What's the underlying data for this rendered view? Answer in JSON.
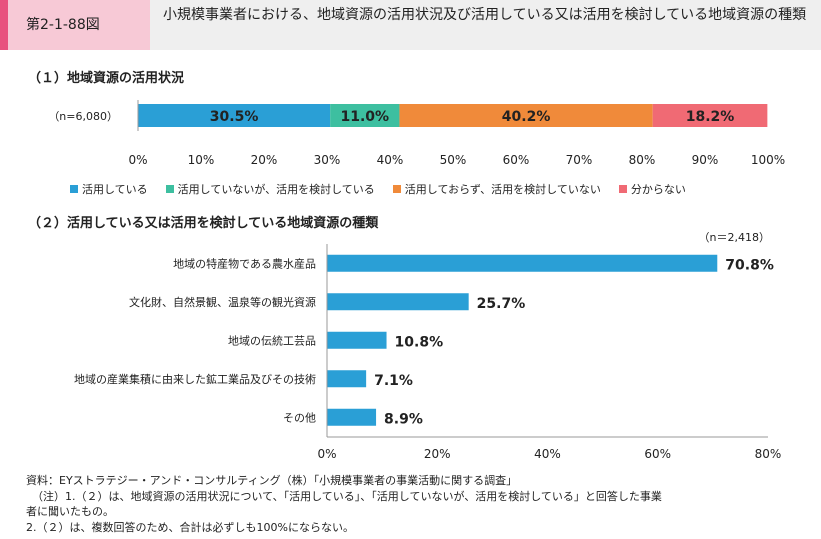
{
  "header": {
    "fig_label": "第2-1-88図",
    "title": "小規模事業者における、地域資源の活用状況及び活用している又は活用を検討している地域資源の種類"
  },
  "colors": {
    "blue": "#2a9fd6",
    "teal": "#3dbfa0",
    "orange": "#f08a3a",
    "red": "#f06a74"
  },
  "chart_data": [
    {
      "type": "bar",
      "orientation": "horizontal-stacked",
      "title": "（１）地域資源の活用状況",
      "n_label": "（n=6,080）",
      "categories": [
        "（n=6,080）"
      ],
      "series": [
        {
          "name": "活用している",
          "values": [
            30.5
          ],
          "label": "30.5%",
          "color": "#2a9fd6"
        },
        {
          "name": "活用していないが、活用を検討している",
          "values": [
            11.0
          ],
          "label": "11.0%",
          "color": "#3dbfa0"
        },
        {
          "name": "活用しておらず、活用を検討していない",
          "values": [
            40.2
          ],
          "label": "40.2%",
          "color": "#f08a3a"
        },
        {
          "name": "分からない",
          "values": [
            18.2
          ],
          "label": "18.2%",
          "color": "#f06a74"
        }
      ],
      "xlim": [
        0,
        100
      ],
      "xticks": [
        "0%",
        "10%",
        "20%",
        "30%",
        "40%",
        "50%",
        "60%",
        "70%",
        "80%",
        "90%",
        "100%"
      ],
      "legend": "bottom"
    },
    {
      "type": "bar",
      "orientation": "horizontal",
      "title": "（２）活用している又は活用を検討している地域資源の種類",
      "n_label": "（n＝2,418）",
      "categories": [
        "地域の特産物である農水産品",
        "文化財、自然景観、温泉等の観光資源",
        "地域の伝統工芸品",
        "地域の産業集積に由来した鉱工業品及びその技術",
        "その他"
      ],
      "values": [
        70.8,
        25.7,
        10.8,
        7.1,
        8.9
      ],
      "labels": [
        "70.8%",
        "25.7%",
        "10.8%",
        "7.1%",
        "8.9%"
      ],
      "xlim": [
        0,
        80
      ],
      "xticks": [
        "0%",
        "20%",
        "40%",
        "60%",
        "80%"
      ],
      "color": "#2a9fd6"
    }
  ],
  "notes": [
    "資料：EYストラテジー・アンド・コンサルティング（株）「小規模事業者の事業活動に関する調査」",
    "（注）1.（２）は、地域資源の活用状況について、「活用している」、「活用していないが、活用を検討している」と回答した事業",
    "者に聞いたもの。",
    "2.（２）は、複数回答のため、合計は必ずしも100%にならない。"
  ]
}
